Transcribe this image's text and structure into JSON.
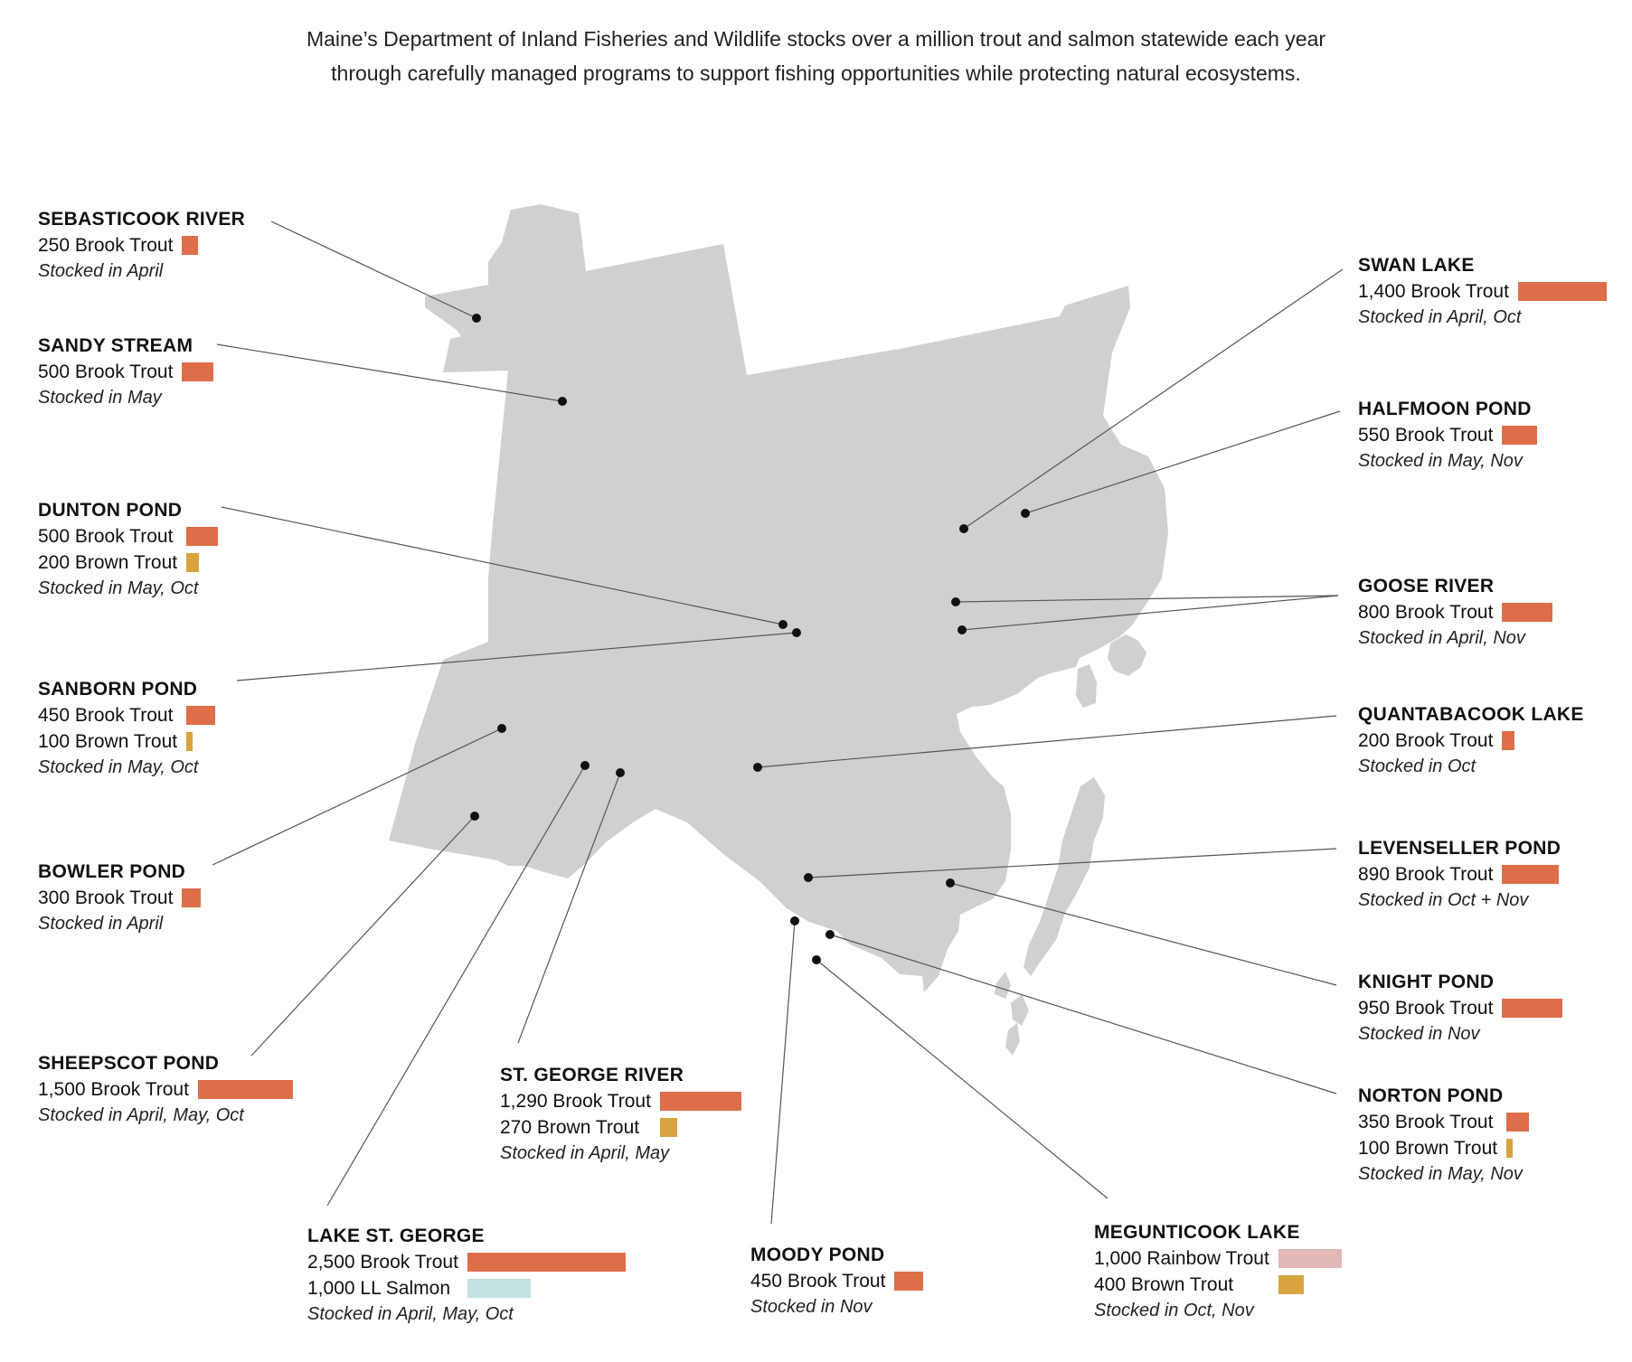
{
  "intro": {
    "line1": "Maine’s Department of Inland Fisheries and Wildlife stocks over a million trout and salmon statewide each year",
    "line2": "through carefully managed programs to support fishing opportunities while protecting natural ecosystems."
  },
  "colors": {
    "map_fill": "#d0d0d0",
    "leader_line": "#555555",
    "dot": "#111111",
    "brook_trout": "#de6e49",
    "brown_trout": "#d9a43f",
    "rainbow_trout": "#e2b7b7",
    "ll_salmon": "#c3e2e1"
  },
  "sites": [
    {
      "name": "SEBASTICOOK RIVER",
      "stocks": [
        {
          "label": "250 Brook Trout",
          "count": 250,
          "species": "brook_trout"
        }
      ],
      "note": "Stocked in April"
    },
    {
      "name": "SANDY STREAM",
      "stocks": [
        {
          "label": "500 Brook Trout",
          "count": 500,
          "species": "brook_trout"
        }
      ],
      "note": "Stocked in May"
    },
    {
      "name": "DUNTON POND",
      "stocks": [
        {
          "label": "500 Brook Trout",
          "count": 500,
          "species": "brook_trout"
        },
        {
          "label": "200 Brown Trout",
          "count": 200,
          "species": "brown_trout"
        }
      ],
      "note": "Stocked in May, Oct"
    },
    {
      "name": "SANBORN POND",
      "stocks": [
        {
          "label": "450 Brook Trout",
          "count": 450,
          "species": "brook_trout"
        },
        {
          "label": "100 Brown Trout",
          "count": 100,
          "species": "brown_trout"
        }
      ],
      "note": "Stocked in May, Oct"
    },
    {
      "name": "BOWLER POND",
      "stocks": [
        {
          "label": "300 Brook Trout",
          "count": 300,
          "species": "brook_trout"
        }
      ],
      "note": "Stocked in April"
    },
    {
      "name": "SHEEPSCOT POND",
      "stocks": [
        {
          "label": "1,500 Brook Trout",
          "count": 1500,
          "species": "brook_trout"
        }
      ],
      "note": "Stocked in April, May, Oct"
    },
    {
      "name": "ST. GEORGE RIVER",
      "stocks": [
        {
          "label": "1,290 Brook Trout",
          "count": 1290,
          "species": "brook_trout"
        },
        {
          "label": "270 Brown Trout",
          "count": 270,
          "species": "brown_trout"
        }
      ],
      "note": "Stocked in April, May"
    },
    {
      "name": "LAKE ST. GEORGE",
      "stocks": [
        {
          "label": "2,500 Brook Trout",
          "count": 2500,
          "species": "brook_trout"
        },
        {
          "label": "1,000 LL Salmon",
          "count": 1000,
          "species": "ll_salmon"
        }
      ],
      "note": "Stocked in April, May, Oct"
    },
    {
      "name": "MOODY POND",
      "stocks": [
        {
          "label": "450 Brook Trout",
          "count": 450,
          "species": "brook_trout"
        }
      ],
      "note": "Stocked in Nov"
    },
    {
      "name": "MEGUNTICOOK LAKE",
      "stocks": [
        {
          "label": "1,000 Rainbow Trout",
          "count": 1000,
          "species": "rainbow_trout"
        },
        {
          "label": "400 Brown Trout",
          "count": 400,
          "species": "brown_trout"
        }
      ],
      "note": "Stocked in Oct, Nov"
    },
    {
      "name": "SWAN LAKE",
      "stocks": [
        {
          "label": "1,400 Brook Trout",
          "count": 1400,
          "species": "brook_trout"
        }
      ],
      "note": "Stocked in April, Oct"
    },
    {
      "name": "HALFMOON POND",
      "stocks": [
        {
          "label": "550 Brook Trout",
          "count": 550,
          "species": "brook_trout"
        }
      ],
      "note": "Stocked in May, Nov"
    },
    {
      "name": "GOOSE RIVER",
      "stocks": [
        {
          "label": "800 Brook Trout",
          "count": 800,
          "species": "brook_trout"
        }
      ],
      "note": "Stocked in April, Nov"
    },
    {
      "name": "QUANTABACOOK LAKE",
      "stocks": [
        {
          "label": "200 Brook Trout",
          "count": 200,
          "species": "brook_trout"
        }
      ],
      "note": "Stocked in Oct"
    },
    {
      "name": "LEVENSELLER POND",
      "stocks": [
        {
          "label": "890 Brook Trout",
          "count": 890,
          "species": "brook_trout"
        }
      ],
      "note": "Stocked in Oct + Nov"
    },
    {
      "name": "KNIGHT POND",
      "stocks": [
        {
          "label": "950 Brook Trout",
          "count": 950,
          "species": "brook_trout"
        }
      ],
      "note": "Stocked in Nov"
    },
    {
      "name": "NORTON POND",
      "stocks": [
        {
          "label": "350 Brook Trout",
          "count": 350,
          "species": "brook_trout"
        },
        {
          "label": "100 Brown Trout",
          "count": 100,
          "species": "brown_trout"
        }
      ],
      "note": "Stocked in May, Nov"
    }
  ]
}
